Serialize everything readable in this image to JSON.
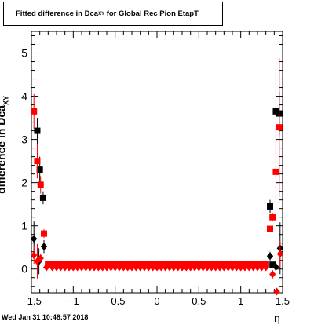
{
  "chart_data": {
    "type": "scatter",
    "title_parts": [
      "Fitted difference in Dca",
      "XY",
      " for Global Rec Pion EtapT"
    ],
    "ylabel_parts": [
      "difference in Dca",
      "XY"
    ],
    "xlabel": "η",
    "xlim": [
      -1.5,
      1.5
    ],
    "ylim": [
      -0.55,
      5.5
    ],
    "xticks": [
      "−1.5",
      "−1",
      "−0.5",
      "0",
      "0.5",
      "1",
      "1.5"
    ],
    "xtick_values": [
      -1.5,
      -1,
      -0.5,
      0,
      0.5,
      1,
      1.5
    ],
    "yticks": [
      "0",
      "1",
      "2",
      "3",
      "4",
      "5"
    ],
    "ytick_values": [
      0,
      1,
      2,
      3,
      4,
      5
    ],
    "series": [
      {
        "color": "#000000",
        "marker": "square",
        "points": [
          [
            -1.43,
            3.2,
            0.3
          ],
          [
            -1.4,
            2.3,
            0.3
          ],
          [
            -1.36,
            1.65,
            0.15
          ],
          [
            1.35,
            1.45,
            0.15
          ],
          [
            1.42,
            3.65,
            1.0
          ],
          [
            1.46,
            3.6,
            0.5
          ],
          [
            1.38,
            0.1,
            0.05
          ],
          [
            -1.3,
            0.12,
            0.03
          ],
          [
            -1.2,
            0.12,
            0.03
          ],
          [
            -1.1,
            0.12,
            0.03
          ],
          [
            -1.0,
            0.12,
            0.03
          ],
          [
            -0.9,
            0.12,
            0.03
          ],
          [
            -0.8,
            0.12,
            0.03
          ],
          [
            -0.7,
            0.12,
            0.03
          ],
          [
            -0.6,
            0.12,
            0.03
          ],
          [
            -0.5,
            0.12,
            0.03
          ],
          [
            -0.4,
            0.12,
            0.03
          ],
          [
            -0.3,
            0.12,
            0.03
          ],
          [
            -0.2,
            0.12,
            0.03
          ],
          [
            -0.1,
            0.12,
            0.03
          ],
          [
            0.0,
            0.12,
            0.03
          ],
          [
            0.1,
            0.12,
            0.03
          ],
          [
            0.2,
            0.12,
            0.03
          ],
          [
            0.3,
            0.12,
            0.03
          ],
          [
            0.4,
            0.12,
            0.03
          ],
          [
            0.5,
            0.12,
            0.03
          ],
          [
            0.6,
            0.12,
            0.03
          ],
          [
            0.7,
            0.12,
            0.03
          ],
          [
            0.8,
            0.12,
            0.03
          ],
          [
            0.9,
            0.12,
            0.03
          ],
          [
            1.0,
            0.12,
            0.03
          ],
          [
            1.1,
            0.12,
            0.03
          ],
          [
            1.2,
            0.12,
            0.03
          ],
          [
            1.3,
            0.12,
            0.03
          ]
        ]
      },
      {
        "color": "#000000",
        "marker": "diamond",
        "points": [
          [
            -1.47,
            0.7,
            0.4
          ],
          [
            -1.41,
            0.18,
            0.3
          ],
          [
            -1.35,
            0.52,
            0.15
          ],
          [
            1.35,
            0.3,
            0.1
          ],
          [
            1.42,
            0.05,
            0.3
          ],
          [
            1.47,
            0.48,
            0.6
          ],
          [
            -1.3,
            0.1,
            0.03
          ],
          [
            -1.0,
            0.1,
            0.03
          ],
          [
            -0.5,
            0.1,
            0.03
          ],
          [
            0.0,
            0.1,
            0.03
          ],
          [
            0.5,
            0.1,
            0.03
          ],
          [
            1.0,
            0.1,
            0.03
          ],
          [
            1.25,
            0.1,
            0.03
          ]
        ]
      },
      {
        "color": "#ff0000",
        "marker": "square",
        "points": [
          [
            -1.47,
            3.65,
            0.4
          ],
          [
            -1.43,
            2.5,
            0.4
          ],
          [
            -1.39,
            1.95,
            0.2
          ],
          [
            -1.35,
            0.82,
            0.1
          ],
          [
            1.35,
            0.93,
            0.05
          ],
          [
            1.38,
            1.2,
            0.1
          ],
          [
            1.42,
            2.25,
            1.0
          ],
          [
            1.46,
            3.28,
            1.6
          ],
          [
            -1.3,
            0.12,
            0.03
          ],
          [
            -1.25,
            0.12,
            0.03
          ],
          [
            -1.2,
            0.12,
            0.03
          ],
          [
            -1.15,
            0.12,
            0.03
          ],
          [
            -1.1,
            0.12,
            0.03
          ],
          [
            -1.05,
            0.12,
            0.03
          ],
          [
            -1.0,
            0.12,
            0.03
          ],
          [
            -0.95,
            0.12,
            0.03
          ],
          [
            -0.9,
            0.12,
            0.03
          ],
          [
            -0.85,
            0.12,
            0.03
          ],
          [
            -0.8,
            0.12,
            0.03
          ],
          [
            -0.75,
            0.12,
            0.03
          ],
          [
            -0.7,
            0.12,
            0.03
          ],
          [
            -0.65,
            0.12,
            0.03
          ],
          [
            -0.6,
            0.12,
            0.03
          ],
          [
            -0.55,
            0.12,
            0.03
          ],
          [
            -0.5,
            0.12,
            0.03
          ],
          [
            -0.45,
            0.12,
            0.03
          ],
          [
            -0.4,
            0.12,
            0.03
          ],
          [
            -0.35,
            0.12,
            0.03
          ],
          [
            -0.3,
            0.12,
            0.03
          ],
          [
            -0.25,
            0.12,
            0.03
          ],
          [
            -0.2,
            0.12,
            0.03
          ],
          [
            -0.15,
            0.12,
            0.03
          ],
          [
            -0.1,
            0.12,
            0.03
          ],
          [
            -0.05,
            0.12,
            0.03
          ],
          [
            0.0,
            0.12,
            0.03
          ],
          [
            0.05,
            0.12,
            0.03
          ],
          [
            0.1,
            0.12,
            0.03
          ],
          [
            0.15,
            0.12,
            0.03
          ],
          [
            0.2,
            0.12,
            0.03
          ],
          [
            0.25,
            0.12,
            0.03
          ],
          [
            0.3,
            0.12,
            0.03
          ],
          [
            0.35,
            0.12,
            0.03
          ],
          [
            0.4,
            0.12,
            0.03
          ],
          [
            0.45,
            0.12,
            0.03
          ],
          [
            0.5,
            0.12,
            0.03
          ],
          [
            0.55,
            0.12,
            0.03
          ],
          [
            0.6,
            0.12,
            0.03
          ],
          [
            0.65,
            0.12,
            0.03
          ],
          [
            0.7,
            0.12,
            0.03
          ],
          [
            0.75,
            0.12,
            0.03
          ],
          [
            0.8,
            0.12,
            0.03
          ],
          [
            0.85,
            0.12,
            0.03
          ],
          [
            0.9,
            0.12,
            0.03
          ],
          [
            0.95,
            0.12,
            0.03
          ],
          [
            1.0,
            0.12,
            0.03
          ],
          [
            1.05,
            0.12,
            0.03
          ],
          [
            1.1,
            0.12,
            0.03
          ],
          [
            1.15,
            0.12,
            0.03
          ],
          [
            1.2,
            0.12,
            0.03
          ],
          [
            1.25,
            0.12,
            0.03
          ],
          [
            1.3,
            0.12,
            0.03
          ]
        ]
      },
      {
        "color": "#ff0000",
        "marker": "diamond",
        "points": [
          [
            -1.47,
            0.32,
            0.2
          ],
          [
            -1.43,
            0.18,
            0.4
          ],
          [
            -1.39,
            0.25,
            0.1
          ],
          [
            1.38,
            -0.12,
            0.1
          ],
          [
            1.43,
            -0.52,
            0.05
          ],
          [
            1.47,
            0.35,
            0.3
          ],
          [
            -1.32,
            0.04,
            0.03
          ],
          [
            -1.25,
            0.04,
            0.03
          ],
          [
            -1.2,
            0.04,
            0.03
          ],
          [
            -1.15,
            0.04,
            0.03
          ],
          [
            -1.1,
            0.04,
            0.03
          ],
          [
            -1.05,
            0.04,
            0.03
          ],
          [
            -1.0,
            0.04,
            0.03
          ],
          [
            -0.95,
            0.04,
            0.03
          ],
          [
            -0.9,
            0.04,
            0.03
          ],
          [
            -0.85,
            0.04,
            0.03
          ],
          [
            -0.8,
            0.04,
            0.03
          ],
          [
            -0.75,
            0.04,
            0.03
          ],
          [
            -0.7,
            0.04,
            0.03
          ],
          [
            -0.65,
            0.04,
            0.03
          ],
          [
            -0.6,
            0.04,
            0.03
          ],
          [
            -0.55,
            0.04,
            0.03
          ],
          [
            -0.5,
            0.04,
            0.03
          ],
          [
            -0.45,
            0.04,
            0.03
          ],
          [
            -0.4,
            0.04,
            0.03
          ],
          [
            -0.35,
            0.04,
            0.03
          ],
          [
            -0.3,
            0.04,
            0.03
          ],
          [
            -0.25,
            0.04,
            0.03
          ],
          [
            -0.2,
            0.04,
            0.03
          ],
          [
            -0.15,
            0.04,
            0.03
          ],
          [
            -0.1,
            0.04,
            0.03
          ],
          [
            -0.05,
            0.04,
            0.03
          ],
          [
            0.0,
            0.04,
            0.03
          ],
          [
            0.05,
            0.04,
            0.03
          ],
          [
            0.1,
            0.04,
            0.03
          ],
          [
            0.15,
            0.04,
            0.03
          ],
          [
            0.2,
            0.04,
            0.03
          ],
          [
            0.25,
            0.04,
            0.03
          ],
          [
            0.3,
            0.04,
            0.03
          ],
          [
            0.35,
            0.04,
            0.03
          ],
          [
            0.4,
            0.04,
            0.03
          ],
          [
            0.45,
            0.04,
            0.03
          ],
          [
            0.5,
            0.04,
            0.03
          ],
          [
            0.55,
            0.04,
            0.03
          ],
          [
            0.6,
            0.04,
            0.03
          ],
          [
            0.65,
            0.04,
            0.03
          ],
          [
            0.7,
            0.04,
            0.03
          ],
          [
            0.75,
            0.04,
            0.03
          ],
          [
            0.8,
            0.04,
            0.03
          ],
          [
            0.85,
            0.04,
            0.03
          ],
          [
            0.9,
            0.04,
            0.03
          ],
          [
            0.95,
            0.04,
            0.03
          ],
          [
            1.0,
            0.04,
            0.03
          ],
          [
            1.05,
            0.04,
            0.03
          ],
          [
            1.1,
            0.04,
            0.03
          ],
          [
            1.15,
            0.04,
            0.03
          ],
          [
            1.2,
            0.04,
            0.03
          ],
          [
            1.25,
            0.04,
            0.03
          ],
          [
            1.3,
            0.04,
            0.03
          ]
        ]
      }
    ],
    "footer": "Wed Jan 31 10:48:57 2018"
  }
}
